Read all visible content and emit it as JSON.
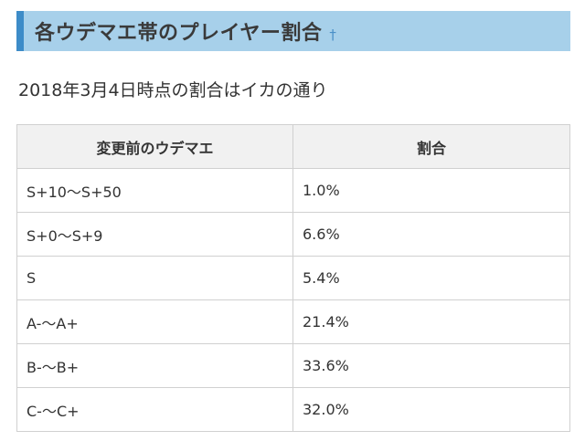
{
  "section": {
    "title": "各ウデマエ帯のプレイヤー割合",
    "anchor_glyph": "†"
  },
  "intro_text": "2018年3月4日時点の割合はイカの通り",
  "table": {
    "headers": [
      "変更前のウデマエ",
      "割合"
    ],
    "rows": [
      [
        "S+10〜S+50",
        "1.0%"
      ],
      [
        "S+0〜S+9",
        "6.6%"
      ],
      [
        "S",
        "5.4%"
      ],
      [
        "A-〜A+",
        "21.4%"
      ],
      [
        "B-〜B+",
        "33.6%"
      ],
      [
        "C-〜C+",
        "32.0%"
      ]
    ]
  },
  "colors": {
    "heading_bg": "#a7d0ea",
    "heading_accent": "#3d8cc8",
    "header_bg": "#f1f1f1",
    "border": "#d0d0d0"
  }
}
